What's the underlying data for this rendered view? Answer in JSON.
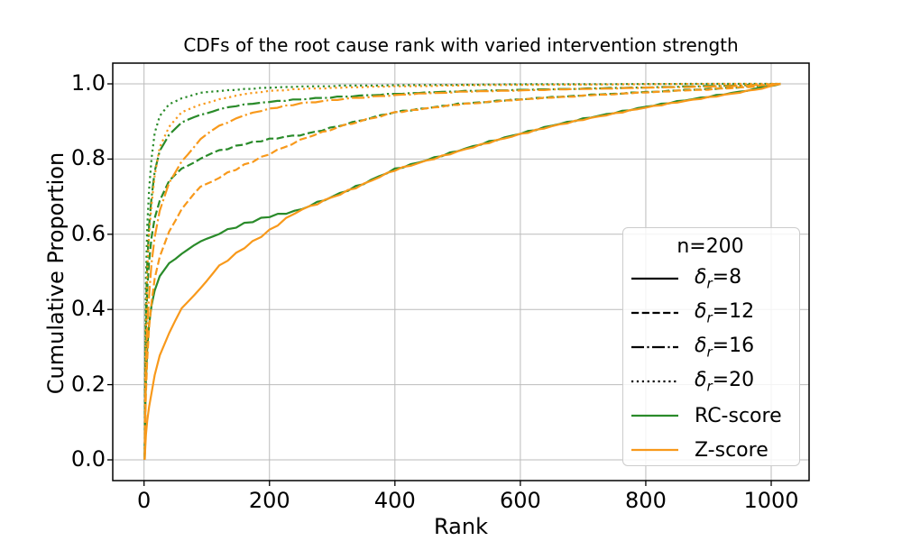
{
  "figure": {
    "background": "#ffffff"
  },
  "chart_data": {
    "type": "line",
    "title": "CDFs of the root cause rank with varied intervention strength",
    "xlabel": "Rank",
    "ylabel": "Cumulative Proportion",
    "xlim": [
      -50,
      1060
    ],
    "ylim": [
      -0.055,
      1.055
    ],
    "x_ticks": [
      "0",
      "200",
      "400",
      "600",
      "800",
      "1000"
    ],
    "x_tick_values": [
      0,
      200,
      400,
      600,
      800,
      1000
    ],
    "y_ticks": [
      "0.0",
      "0.2",
      "0.4",
      "0.6",
      "0.8",
      "1.0"
    ],
    "y_tick_values": [
      0.0,
      0.2,
      0.4,
      0.6,
      0.8,
      1.0
    ],
    "grid": true,
    "legend_position": "lower right",
    "colors": {
      "rc_score": "#2a8b2a",
      "z_score": "#f8991b",
      "grid": "#bbbbbb",
      "frame": "#000000"
    },
    "series": [
      {
        "name": "RC-score dr=20",
        "method": "RC-score",
        "delta_r": 20,
        "color": "#2a8b2a",
        "linestyle": "dotted",
        "points": [
          [
            1,
            0
          ],
          [
            2,
            0.3
          ],
          [
            3,
            0.48
          ],
          [
            5,
            0.62
          ],
          [
            8,
            0.72
          ],
          [
            12,
            0.8
          ],
          [
            17,
            0.87
          ],
          [
            25,
            0.916
          ],
          [
            40,
            0.946
          ],
          [
            60,
            0.963
          ],
          [
            90,
            0.975
          ],
          [
            120,
            0.981
          ],
          [
            160,
            0.986
          ],
          [
            200,
            0.99
          ],
          [
            300,
            0.994
          ],
          [
            450,
            0.996
          ],
          [
            600,
            0.998
          ],
          [
            800,
            0.999
          ],
          [
            1015,
            1.0
          ]
        ]
      },
      {
        "name": "RC-score dr=16",
        "method": "RC-score",
        "delta_r": 16,
        "color": "#2a8b2a",
        "linestyle": "dashdot",
        "points": [
          [
            1,
            0
          ],
          [
            2,
            0.25
          ],
          [
            3,
            0.4
          ],
          [
            5,
            0.52
          ],
          [
            8,
            0.62
          ],
          [
            12,
            0.7
          ],
          [
            17,
            0.765
          ],
          [
            25,
            0.82
          ],
          [
            40,
            0.866
          ],
          [
            60,
            0.896
          ],
          [
            90,
            0.918
          ],
          [
            120,
            0.933
          ],
          [
            160,
            0.945
          ],
          [
            200,
            0.952
          ],
          [
            250,
            0.959
          ],
          [
            320,
            0.966
          ],
          [
            400,
            0.973
          ],
          [
            500,
            0.98
          ],
          [
            650,
            0.985
          ],
          [
            800,
            0.99
          ],
          [
            950,
            0.995
          ],
          [
            1015,
            1.0
          ]
        ]
      },
      {
        "name": "RC-score dr=12",
        "method": "RC-score",
        "delta_r": 12,
        "color": "#2a8b2a",
        "linestyle": "dashed",
        "points": [
          [
            1,
            0
          ],
          [
            2,
            0.2
          ],
          [
            3,
            0.33
          ],
          [
            5,
            0.45
          ],
          [
            8,
            0.53
          ],
          [
            12,
            0.59
          ],
          [
            17,
            0.645
          ],
          [
            25,
            0.69
          ],
          [
            40,
            0.74
          ],
          [
            60,
            0.775
          ],
          [
            90,
            0.802
          ],
          [
            120,
            0.822
          ],
          [
            160,
            0.84
          ],
          [
            200,
            0.853
          ],
          [
            260,
            0.867
          ],
          [
            320,
            0.892
          ],
          [
            400,
            0.925
          ],
          [
            500,
            0.946
          ],
          [
            600,
            0.959
          ],
          [
            700,
            0.969
          ],
          [
            800,
            0.978
          ],
          [
            900,
            0.986
          ],
          [
            960,
            0.992
          ],
          [
            1015,
            1.0
          ]
        ]
      },
      {
        "name": "RC-score dr=8",
        "method": "RC-score",
        "delta_r": 8,
        "color": "#2a8b2a",
        "linestyle": "solid",
        "points": [
          [
            1,
            0
          ],
          [
            2,
            0.13
          ],
          [
            3,
            0.21
          ],
          [
            5,
            0.3
          ],
          [
            8,
            0.36
          ],
          [
            12,
            0.41
          ],
          [
            17,
            0.45
          ],
          [
            25,
            0.49
          ],
          [
            40,
            0.525
          ],
          [
            60,
            0.55
          ],
          [
            90,
            0.578
          ],
          [
            120,
            0.603
          ],
          [
            160,
            0.628
          ],
          [
            200,
            0.648
          ],
          [
            240,
            0.66
          ],
          [
            300,
            0.7
          ],
          [
            350,
            0.735
          ],
          [
            400,
            0.773
          ],
          [
            450,
            0.797
          ],
          [
            500,
            0.822
          ],
          [
            550,
            0.846
          ],
          [
            600,
            0.868
          ],
          [
            650,
            0.889
          ],
          [
            700,
            0.907
          ],
          [
            750,
            0.923
          ],
          [
            800,
            0.939
          ],
          [
            850,
            0.953
          ],
          [
            900,
            0.966
          ],
          [
            950,
            0.979
          ],
          [
            985,
            0.99
          ],
          [
            1015,
            1.0
          ]
        ]
      },
      {
        "name": "Z-score dr=20",
        "method": "Z-score",
        "delta_r": 20,
        "color": "#f8991b",
        "linestyle": "dotted",
        "points": [
          [
            1,
            0
          ],
          [
            2,
            0.22
          ],
          [
            3,
            0.36
          ],
          [
            5,
            0.5
          ],
          [
            8,
            0.6
          ],
          [
            12,
            0.68
          ],
          [
            17,
            0.755
          ],
          [
            25,
            0.83
          ],
          [
            40,
            0.886
          ],
          [
            60,
            0.923
          ],
          [
            90,
            0.946
          ],
          [
            120,
            0.959
          ],
          [
            160,
            0.973
          ],
          [
            200,
            0.981
          ],
          [
            250,
            0.986
          ],
          [
            350,
            0.991
          ],
          [
            500,
            0.995
          ],
          [
            700,
            0.997
          ],
          [
            900,
            0.999
          ],
          [
            1015,
            1.0
          ]
        ]
      },
      {
        "name": "Z-score dr=16",
        "method": "Z-score",
        "delta_r": 16,
        "color": "#f8991b",
        "linestyle": "dashdot",
        "points": [
          [
            1,
            0
          ],
          [
            2,
            0.15
          ],
          [
            3,
            0.25
          ],
          [
            5,
            0.35
          ],
          [
            8,
            0.44
          ],
          [
            12,
            0.52
          ],
          [
            17,
            0.595
          ],
          [
            25,
            0.665
          ],
          [
            40,
            0.735
          ],
          [
            60,
            0.795
          ],
          [
            90,
            0.853
          ],
          [
            120,
            0.888
          ],
          [
            160,
            0.917
          ],
          [
            200,
            0.934
          ],
          [
            250,
            0.948
          ],
          [
            320,
            0.96
          ],
          [
            400,
            0.97
          ],
          [
            500,
            0.978
          ],
          [
            650,
            0.984
          ],
          [
            800,
            0.989
          ],
          [
            950,
            0.994
          ],
          [
            1015,
            1.0
          ]
        ]
      },
      {
        "name": "Z-score dr=12",
        "method": "Z-score",
        "delta_r": 12,
        "color": "#f8991b",
        "linestyle": "dashed",
        "points": [
          [
            1,
            0
          ],
          [
            2,
            0.1
          ],
          [
            3,
            0.18
          ],
          [
            5,
            0.27
          ],
          [
            8,
            0.35
          ],
          [
            12,
            0.42
          ],
          [
            17,
            0.48
          ],
          [
            25,
            0.54
          ],
          [
            40,
            0.61
          ],
          [
            60,
            0.667
          ],
          [
            90,
            0.725
          ],
          [
            120,
            0.752
          ],
          [
            160,
            0.784
          ],
          [
            200,
            0.814
          ],
          [
            260,
            0.858
          ],
          [
            320,
            0.89
          ],
          [
            400,
            0.924
          ],
          [
            500,
            0.945
          ],
          [
            600,
            0.958
          ],
          [
            700,
            0.968
          ],
          [
            800,
            0.977
          ],
          [
            900,
            0.985
          ],
          [
            960,
            0.991
          ],
          [
            1015,
            1.0
          ]
        ]
      },
      {
        "name": "Z-score dr=8",
        "method": "Z-score",
        "delta_r": 8,
        "color": "#f8991b",
        "linestyle": "solid",
        "points": [
          [
            1,
            0
          ],
          [
            2,
            0.04
          ],
          [
            3,
            0.07
          ],
          [
            5,
            0.1
          ],
          [
            8,
            0.14
          ],
          [
            12,
            0.18
          ],
          [
            17,
            0.225
          ],
          [
            25,
            0.275
          ],
          [
            40,
            0.335
          ],
          [
            60,
            0.4
          ],
          [
            90,
            0.46
          ],
          [
            120,
            0.515
          ],
          [
            160,
            0.565
          ],
          [
            200,
            0.61
          ],
          [
            240,
            0.657
          ],
          [
            300,
            0.698
          ],
          [
            350,
            0.733
          ],
          [
            400,
            0.771
          ],
          [
            450,
            0.795
          ],
          [
            500,
            0.82
          ],
          [
            550,
            0.844
          ],
          [
            600,
            0.866
          ],
          [
            650,
            0.887
          ],
          [
            700,
            0.905
          ],
          [
            750,
            0.921
          ],
          [
            800,
            0.937
          ],
          [
            850,
            0.951
          ],
          [
            900,
            0.964
          ],
          [
            950,
            0.977
          ],
          [
            985,
            0.988
          ],
          [
            1015,
            1.0
          ]
        ]
      }
    ]
  },
  "legend": {
    "title": "n=200",
    "entries": [
      {
        "symbol": "δ",
        "sub": "r",
        "rest": "=8",
        "linestyle": "solid",
        "color": "#000000"
      },
      {
        "symbol": "δ",
        "sub": "r",
        "rest": "=12",
        "linestyle": "dashed",
        "color": "#000000"
      },
      {
        "symbol": "δ",
        "sub": "r",
        "rest": "=16",
        "linestyle": "dashdot",
        "color": "#000000"
      },
      {
        "symbol": "δ",
        "sub": "r",
        "rest": "=20",
        "linestyle": "dotted",
        "color": "#000000"
      },
      {
        "symbol": "",
        "sub": "",
        "rest": "RC-score",
        "linestyle": "solid",
        "color": "#2a8b2a"
      },
      {
        "symbol": "",
        "sub": "",
        "rest": "Z-score",
        "linestyle": "solid",
        "color": "#f8991b"
      }
    ]
  }
}
